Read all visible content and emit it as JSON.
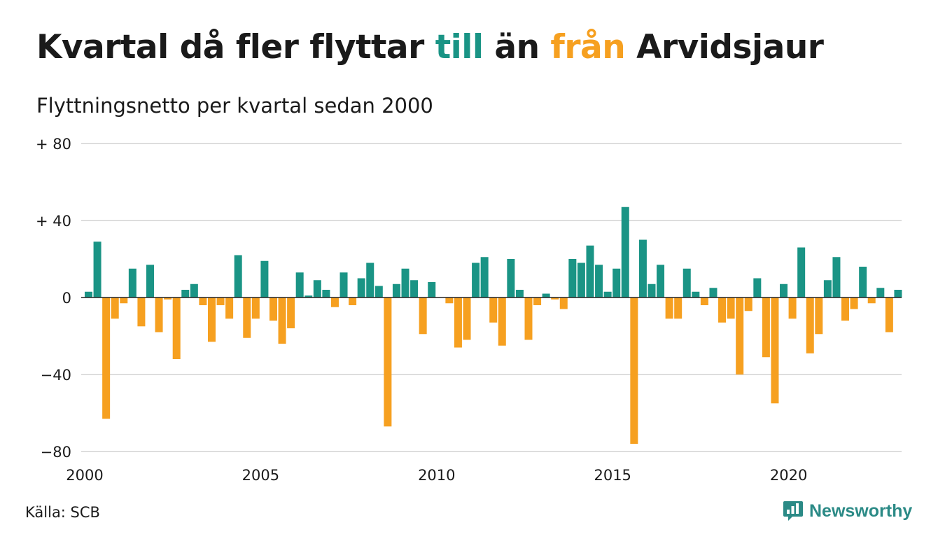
{
  "header": {
    "title_part1": "Kvartal då fler flyttar ",
    "title_till": "till",
    "title_part2": " än ",
    "title_fran": "från",
    "title_part3": " Arvidsjaur",
    "subtitle": "Flyttningsnetto per kvartal sedan 2000"
  },
  "footer": {
    "source": "Källa: SCB",
    "brand": "Newsworthy"
  },
  "colors": {
    "positive": "#1a9485",
    "negative": "#f6a020",
    "grid": "#dddddd",
    "brand": "#2b8a86"
  },
  "chart_data": {
    "type": "bar",
    "title": "Kvartal då fler flyttar till än från Arvidsjaur",
    "subtitle": "Flyttningsnetto per kvartal sedan 2000",
    "x_start": "2000-Q1",
    "ylim": [
      -80,
      80
    ],
    "yticks": [
      80,
      40,
      0,
      -40,
      -80
    ],
    "ytick_labels": [
      "+ 80",
      "+ 40",
      "0",
      "−40",
      "−80"
    ],
    "xticks": [
      2000,
      2005,
      2010,
      2015,
      2020
    ],
    "xtick_labels": [
      "2000",
      "2005",
      "2010",
      "2015",
      "2020"
    ],
    "grid": "horizontal",
    "values": [
      3,
      29,
      -63,
      -11,
      -3,
      15,
      -15,
      17,
      -18,
      -1,
      -32,
      4,
      7,
      -4,
      -23,
      -4,
      -11,
      22,
      -21,
      -11,
      19,
      -12,
      -24,
      -16,
      13,
      1,
      9,
      4,
      -5,
      13,
      -4,
      10,
      18,
      6,
      -67,
      7,
      15,
      9,
      -19,
      8,
      0,
      -3,
      -26,
      -22,
      18,
      21,
      -13,
      -25,
      20,
      4,
      -22,
      -4,
      2,
      -1,
      -6,
      20,
      18,
      27,
      17,
      3,
      15,
      47,
      -76,
      30,
      7,
      17,
      -11,
      -11,
      15,
      3,
      -4,
      5,
      -13,
      -11,
      -40,
      -7,
      10,
      -31,
      -55,
      7,
      -11,
      26,
      -29,
      -19,
      9,
      21,
      -12,
      -6,
      16,
      -3,
      5,
      -18,
      4
    ]
  }
}
